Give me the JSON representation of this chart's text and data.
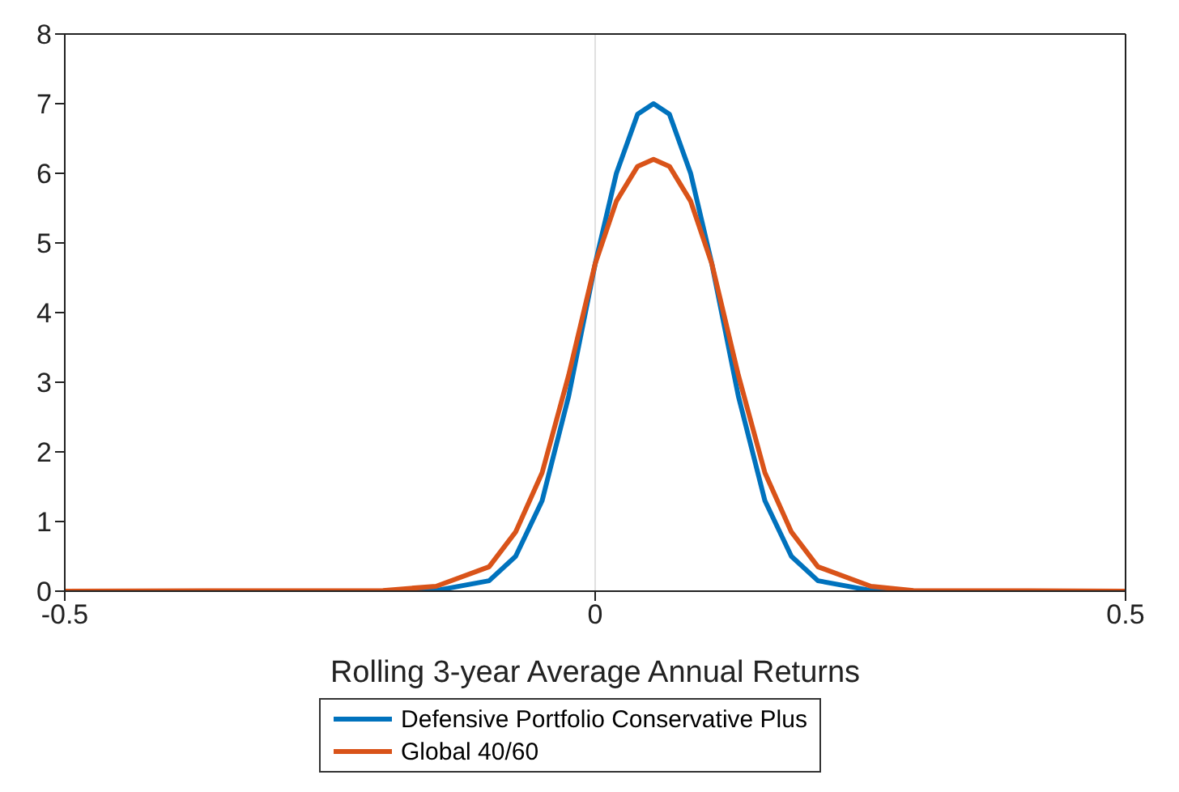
{
  "chart_data": {
    "type": "line",
    "xlabel": "Rolling 3-year Average Annual Returns",
    "xlim": [
      -0.5,
      0.5
    ],
    "xticks": [
      -0.5,
      0,
      0.5
    ],
    "ylim": [
      0,
      8
    ],
    "yticks": [
      0,
      1,
      2,
      3,
      4,
      5,
      6,
      7,
      8
    ],
    "grid": "x",
    "legend": "bottom",
    "line_style": "solid",
    "marker": "none",
    "series": [
      {
        "name": "Defensive Portfolio Conservative Plus",
        "color": "#0072bd",
        "x": [
          -0.5,
          -0.2,
          -0.15,
          -0.1,
          -0.075,
          -0.05,
          -0.025,
          0,
          0.02,
          0.04,
          0.055,
          0.07,
          0.09,
          0.11,
          0.135,
          0.16,
          0.185,
          0.21,
          0.26,
          0.3,
          0.5
        ],
        "values": [
          0,
          0,
          0.01,
          0.15,
          0.5,
          1.3,
          2.8,
          4.7,
          6.0,
          6.85,
          7.0,
          6.85,
          6.0,
          4.7,
          2.8,
          1.3,
          0.5,
          0.15,
          0.01,
          0,
          0
        ]
      },
      {
        "name": "Global 40/60",
        "color": "#d95319",
        "x": [
          -0.5,
          -0.2,
          -0.15,
          -0.1,
          -0.075,
          -0.05,
          -0.025,
          0,
          0.02,
          0.04,
          0.055,
          0.07,
          0.09,
          0.11,
          0.135,
          0.16,
          0.185,
          0.21,
          0.26,
          0.3,
          0.5
        ],
        "values": [
          0,
          0.01,
          0.07,
          0.35,
          0.85,
          1.7,
          3.1,
          4.7,
          5.6,
          6.1,
          6.2,
          6.1,
          5.6,
          4.7,
          3.1,
          1.7,
          0.85,
          0.35,
          0.07,
          0.01,
          0
        ]
      }
    ]
  }
}
